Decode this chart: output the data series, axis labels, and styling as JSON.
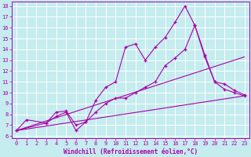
{
  "xlabel": "Windchill (Refroidissement éolien,°C)",
  "bg_color": "#c5ecee",
  "line_color": "#aa00aa",
  "grid_color": "#ffffff",
  "xlim": [
    -0.5,
    23.5
  ],
  "ylim": [
    5.8,
    18.4
  ],
  "xticks": [
    0,
    1,
    2,
    3,
    4,
    5,
    6,
    7,
    8,
    9,
    10,
    11,
    12,
    13,
    14,
    15,
    16,
    17,
    18,
    19,
    20,
    21,
    22,
    23
  ],
  "yticks": [
    6,
    7,
    8,
    9,
    10,
    11,
    12,
    13,
    14,
    15,
    16,
    17,
    18
  ],
  "line1_x": [
    0,
    1,
    3,
    4,
    5,
    6,
    7,
    8,
    9,
    10,
    11,
    12,
    13,
    14,
    15,
    16,
    17,
    18,
    19,
    20,
    21,
    22,
    23
  ],
  "line1_y": [
    6.5,
    7.5,
    7.2,
    8.2,
    8.3,
    7.0,
    7.3,
    9.3,
    10.5,
    11.0,
    14.2,
    14.5,
    13.0,
    14.2,
    15.1,
    16.5,
    18.0,
    16.2,
    13.5,
    11.0,
    10.3,
    10.0,
    9.7
  ],
  "line2_x": [
    0,
    3,
    4,
    5,
    6,
    7,
    8,
    9,
    10,
    11,
    12,
    13,
    14,
    15,
    16,
    17,
    18,
    19,
    20,
    21,
    22,
    23
  ],
  "line2_y": [
    6.5,
    7.2,
    7.8,
    8.2,
    6.5,
    7.3,
    8.2,
    9.0,
    9.5,
    9.5,
    10.0,
    10.5,
    11.0,
    12.5,
    13.2,
    14.0,
    16.2,
    13.3,
    11.0,
    10.8,
    10.2,
    9.8
  ],
  "line3_x": [
    0,
    23
  ],
  "line3_y": [
    6.5,
    9.7
  ],
  "line4_x": [
    0,
    23
  ],
  "line4_y": [
    6.5,
    13.3
  ],
  "xlabel_fontsize": 5.5,
  "tick_fontsize": 5.0,
  "marker_size": 3.5,
  "line_width": 0.8
}
